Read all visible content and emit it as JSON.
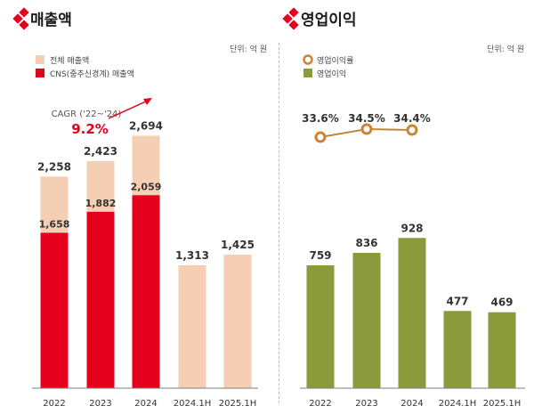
{
  "colors": {
    "red": "#e5001c",
    "peach": "#f5cfb3",
    "olive": "#8b9a3a",
    "orange": "#c98437",
    "diamond": "#e5001c",
    "axis": "#7d7d7d"
  },
  "chart_data": [
    {
      "type": "bar",
      "title": "매출액",
      "unit": "단위: 억 원",
      "categories": [
        "2022",
        "2023",
        "2024",
        "2024.1H",
        "2025.1H"
      ],
      "series": [
        {
          "name": "전체 매출액",
          "values": [
            2258,
            2423,
            2694,
            1313,
            1425
          ]
        },
        {
          "name": "CNS(중추신경계) 매출액",
          "values": [
            1658,
            1882,
            2059,
            null,
            null
          ]
        }
      ],
      "annotation": {
        "label": "CAGR ('22~'24)",
        "value": "9.2%"
      },
      "legend_position": "top-left",
      "ylim": [
        0,
        2850
      ],
      "grid": false
    },
    {
      "type": "bar",
      "title": "영업이익",
      "unit": "단위: 억 원",
      "categories": [
        "2022",
        "2023",
        "2024",
        "2024.1H",
        "2025.1H"
      ],
      "series": [
        {
          "name": "영업이익",
          "values": [
            759,
            836,
            928,
            477,
            469
          ]
        }
      ],
      "line_series": {
        "name": "영업이익률",
        "categories": [
          "2022",
          "2023",
          "2024"
        ],
        "values": [
          33.6,
          34.5,
          34.4
        ],
        "labels": [
          "33.6%",
          "34.5%",
          "34.4%"
        ]
      },
      "legend_position": "top-left",
      "ylim": [
        0,
        1100
      ],
      "grid": false
    }
  ]
}
